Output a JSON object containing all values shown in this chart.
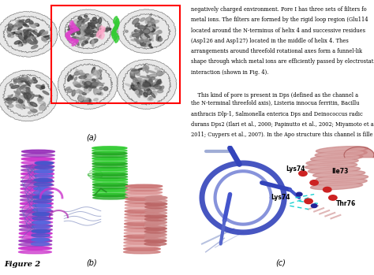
{
  "figure_label": "Figure 2",
  "panel_a_label": "(a)",
  "panel_b_label": "(b)",
  "panel_c_label": "(c)",
  "text_line1": "negatively charged environment. Pore I has three sets of filters fo",
  "text_line2": "metal ions. The filters are formed by the rigid loop region (Glu114",
  "text_line3": "located around the N-terminus of helix 4 and successive residues",
  "text_line4": "(Asp126 and Asp127) located in the middle of helix 4. Thes",
  "text_line5": "arrangements around threefold rotational axes form a funnel-lik",
  "text_line6": "shape through which metal ions are efficiently passed by electrostat",
  "text_line7": "interaction (shown in Fig. 4).",
  "text_line8": "",
  "text_line9": "    This kind of pore is present in Dps (defined as the channel a",
  "text_line10": "the N-terminal threefold axis), Listeria innocua ferritin, Bacillu",
  "text_line11": "anthracis Dlp-1, Salmonella enterica Dps and Deinococcus radic",
  "text_line12": "durans Dps2 (Ilari et al., 2000; Papinutto et al., 2002; Miyamoto et a",
  "text_line13": "2011; Cuypers et al., 2007). In the Apo structure this channel is fille",
  "bg_color": "#ffffff"
}
